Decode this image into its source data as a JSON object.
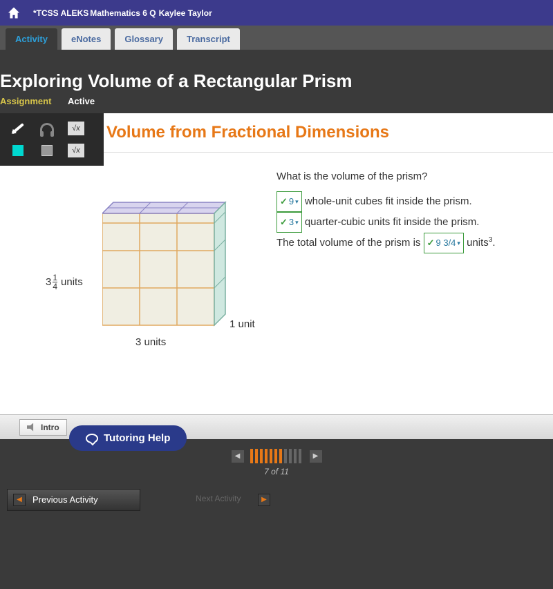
{
  "topbar": {
    "crumb1": "*TCSS ALEKS",
    "crumb2": "Mathematics 6 Q",
    "student": "Kaylee Taylor"
  },
  "tabs": {
    "activity": "Activity",
    "enotes": "eNotes",
    "glossary": "Glossary",
    "transcript": "Transcript"
  },
  "page": {
    "title": "Exploring Volume of a Rectangular Prism",
    "assignment_label": "Assignment",
    "status": "Active",
    "section_title": "Volume from Fractional Dimensions"
  },
  "figure": {
    "height_whole": "3",
    "height_num": "1",
    "height_den": "4",
    "height_unit": "units",
    "width_label": "3 units",
    "depth_label": "1 unit",
    "colors": {
      "face_fill": "#f0eee2",
      "grid": "#e0a860",
      "top_fill": "#d8d4ee",
      "top_edge": "#8a84c4",
      "side_fill": "#cfe8e0",
      "side_edge": "#7ab0a0"
    }
  },
  "question": {
    "prompt": "What is the volume of the prism?",
    "ans1": "9",
    "line1_text": " whole-unit cubes fit inside the prism.",
    "ans2": "3",
    "line2_text": " quarter-cubic units fit inside the prism.",
    "line3_pre": "The total volume of the prism is ",
    "ans3": "9 3/4",
    "line3_post": " units",
    "line3_sup": "3",
    "line3_end": "."
  },
  "intro": {
    "label": "Intro"
  },
  "tutoring": {
    "label": "Tutoring Help"
  },
  "progress": {
    "total": 11,
    "current": 7,
    "counter": "7 of 11"
  },
  "bottom": {
    "prev": "Previous Activity",
    "next": "Next Activity"
  }
}
